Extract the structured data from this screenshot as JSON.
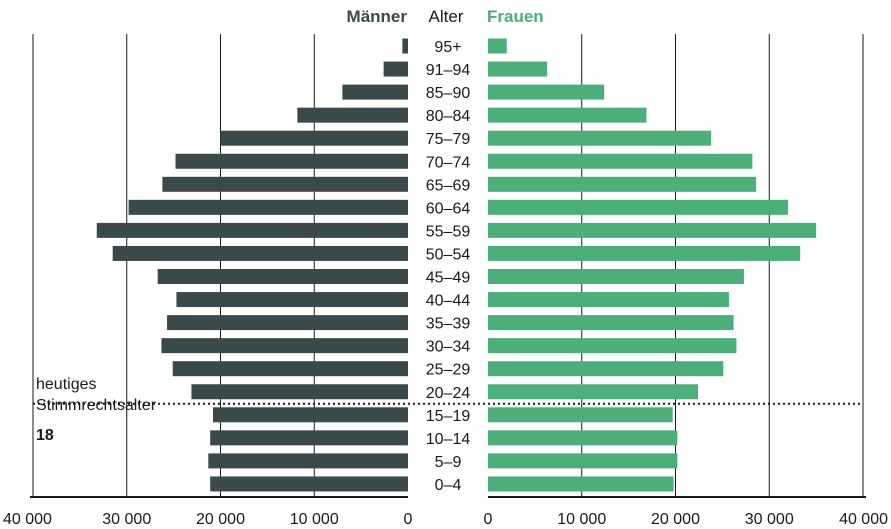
{
  "chart_data": {
    "type": "bar",
    "subtype": "population-pyramid",
    "header": {
      "left": "Männer",
      "center": "Alter",
      "right": "Frauen"
    },
    "categories": [
      "95+",
      "91–94",
      "85–90",
      "80–84",
      "75–79",
      "70–74",
      "65–69",
      "60–64",
      "55–59",
      "50–54",
      "45–49",
      "40–44",
      "35–39",
      "30–34",
      "25–29",
      "20–24",
      "15–19",
      "10–14",
      "5–9",
      "0–4"
    ],
    "series": [
      {
        "name": "Männer",
        "color": "#3a4a4a",
        "values": [
          600,
          2600,
          7000,
          11800,
          20000,
          24800,
          26200,
          29800,
          33200,
          31500,
          26700,
          24700,
          25700,
          26300,
          25100,
          23100,
          20800,
          21100,
          21300,
          21100
        ]
      },
      {
        "name": "Frauen",
        "color": "#4caf7a",
        "values": [
          2000,
          6300,
          12400,
          16900,
          23800,
          28200,
          28600,
          32000,
          35000,
          33300,
          27300,
          25700,
          26200,
          26500,
          25100,
          22400,
          19700,
          20200,
          20200,
          19800
        ]
      }
    ],
    "xlim": [
      0,
      40000
    ],
    "x_ticks": [
      "40 000",
      "30 000",
      "20 000",
      "10 000",
      "0",
      "0",
      "10 000",
      "20 000",
      "30 000",
      "40 000"
    ],
    "grid": true,
    "annotation": {
      "line1": "heutiges",
      "line2": "Stimmrechtsalter",
      "value": "18"
    }
  }
}
